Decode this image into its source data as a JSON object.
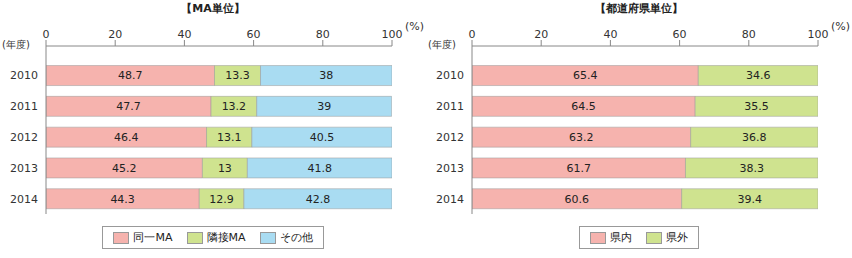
{
  "chart_data": [
    {
      "type": "bar",
      "title": "【MA単位】",
      "orientation": "horizontal",
      "stacked": true,
      "data_labels": true,
      "grid": false,
      "legend": "bottom",
      "x_label": "(%)",
      "y_label": "(年度)",
      "categories": [
        "2010",
        "2011",
        "2012",
        "2013",
        "2014"
      ],
      "xlim": [
        0,
        100
      ],
      "xticks": [
        0,
        20,
        40,
        60,
        80,
        100
      ],
      "series": [
        {
          "name": "同一MA",
          "color": "#f6b3ae",
          "values": [
            48.7,
            47.7,
            46.4,
            45.2,
            44.3
          ]
        },
        {
          "name": "隣接MA",
          "color": "#cfe38f",
          "values": [
            13.3,
            13.2,
            13.1,
            13.0,
            12.9
          ]
        },
        {
          "name": "その他",
          "color": "#a9dcf2",
          "values": [
            38.0,
            39.0,
            40.5,
            41.8,
            42.8
          ]
        }
      ]
    },
    {
      "type": "bar",
      "title": "【都道府県単位】",
      "orientation": "horizontal",
      "stacked": true,
      "data_labels": true,
      "grid": false,
      "legend": "bottom",
      "x_label": "(%)",
      "y_label": "(年度)",
      "categories": [
        "2010",
        "2011",
        "2012",
        "2013",
        "2014"
      ],
      "xlim": [
        0,
        100
      ],
      "xticks": [
        0,
        20,
        40,
        60,
        80,
        100
      ],
      "series": [
        {
          "name": "県内",
          "color": "#f6b3ae",
          "values": [
            65.4,
            64.5,
            63.2,
            61.7,
            60.6
          ]
        },
        {
          "name": "県外",
          "color": "#cfe38f",
          "values": [
            34.6,
            35.5,
            36.8,
            38.3,
            39.4
          ]
        }
      ]
    }
  ]
}
